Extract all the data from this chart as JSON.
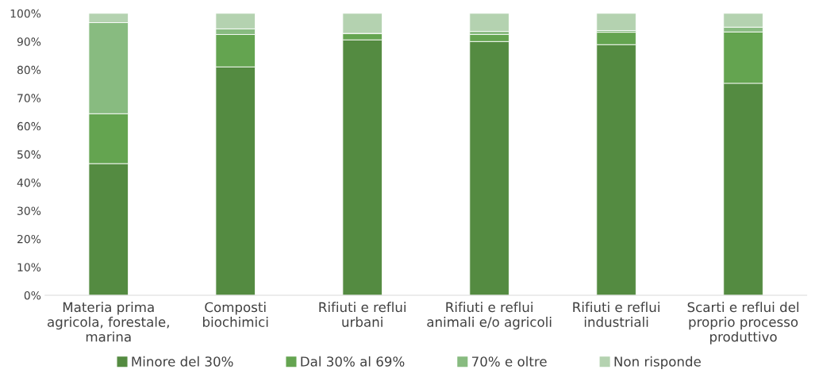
{
  "chart_data": {
    "type": "bar",
    "stacked": true,
    "categories": [
      "Materia prima\nagricola, forestale,\nmarina",
      "Composti\nbiochimici",
      "Rifiuti e reflui\nurbani",
      "Rifiuti e reflui\nanimali e/o agricoli",
      "Rifiuti e reflui\nindustriali",
      "Scarti e reflui del\nproprio processo\nproduttivo"
    ],
    "series": [
      {
        "name": "Minore del 30%",
        "color": "#548b41",
        "values": [
          46.7,
          81.0,
          90.6,
          90.0,
          88.9,
          75.2
        ]
      },
      {
        "name": "Dal 30% al 69%",
        "color": "#64a450",
        "values": [
          17.7,
          11.5,
          2.3,
          2.5,
          4.4,
          18.2
        ]
      },
      {
        "name": "70% e oltre",
        "color": "#88bb80",
        "values": [
          32.3,
          2.0,
          0,
          1.1,
          0.6,
          1.7
        ]
      },
      {
        "name": "Non risponde",
        "color": "#b4d2b0",
        "values": [
          3.3,
          5.5,
          7.1,
          6.4,
          6.1,
          4.9
        ]
      }
    ],
    "ylim": [
      0,
      100
    ],
    "yticks": [
      {
        "value": 0,
        "label": "0%"
      },
      {
        "value": 10,
        "label": "10%"
      },
      {
        "value": 20,
        "label": "20%"
      },
      {
        "value": 30,
        "label": "30%"
      },
      {
        "value": 40,
        "label": "40%"
      },
      {
        "value": 50,
        "label": "50%"
      },
      {
        "value": 60,
        "label": "60%"
      },
      {
        "value": 70,
        "label": "70%"
      },
      {
        "value": 80,
        "label": "80%"
      },
      {
        "value": 90,
        "label": "90%"
      },
      {
        "value": 100,
        "label": "100%"
      }
    ],
    "grid": false,
    "legend": "bottom"
  }
}
